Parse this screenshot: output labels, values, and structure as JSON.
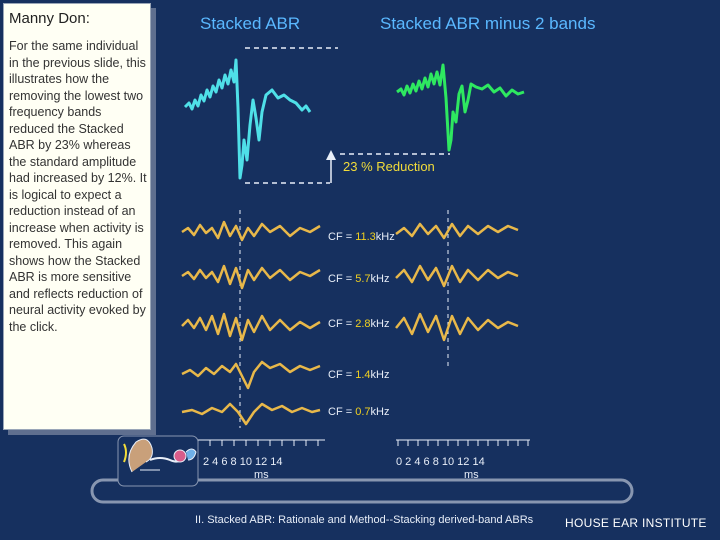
{
  "panel": {
    "title": "Manny Don:",
    "body": "For the same individual in the previous slide, this illustrates how the removing the lowest two frequency bands reduced the Stacked ABR by 23% whereas the standard amplitude had increased by 12%.  It is logical to expect a reduction instead of an increase when activity is removed. This again shows how the Stacked ABR is more sensitive and reflects reduction of neural activity evoked  by the click."
  },
  "headings": {
    "stacked_abr": "Stacked ABR",
    "stacked_minus": "Stacked ABR minus 2 bands"
  },
  "reduction_label": "23 % Reduction",
  "bands": [
    {
      "prefix": "CF = ",
      "value": "11.3",
      "unit": "kHz"
    },
    {
      "prefix": "CF = ",
      "value": "5.7",
      "unit": "kHz"
    },
    {
      "prefix": "CF = ",
      "value": "2.8",
      "unit": "kHz"
    },
    {
      "prefix": "CF = ",
      "value": "1.4",
      "unit": "kHz"
    },
    {
      "prefix": "CF = ",
      "value": "0.7",
      "unit": "kHz"
    }
  ],
  "axis_left": {
    "ticks": "2  4  6  8  10 12 14",
    "unit": "ms"
  },
  "axis_right": {
    "ticks": "0  2  4  6  8  10 12 14",
    "unit": "ms"
  },
  "footer": {
    "left": "II. Stacked ABR: Rationale and Method--Stacking derived-band ABRs",
    "right": "HOUSE  EAR  INSTITUTE"
  },
  "colors": {
    "background": "#16305f",
    "stacked_trace": "#4fe0e8",
    "minus_trace": "#2ee860",
    "band_trace": "#e8b84a",
    "accent_yellow": "#f2dc3a"
  },
  "icons": [
    "ear-anatomy-icon"
  ]
}
